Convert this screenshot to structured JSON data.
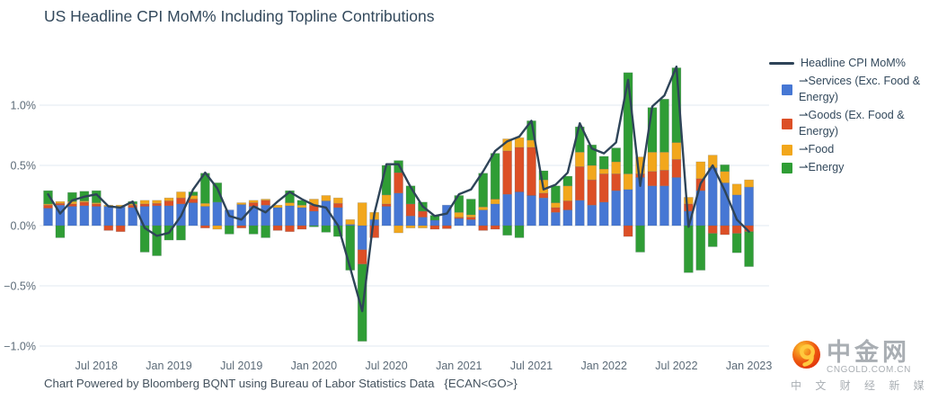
{
  "title": "US Headline CPI MoM% Including Topline Contributions",
  "footer": "Chart Powered by Bloomberg BQNT using Bureau of Labor Statistics Data   {ECAN<GO>}",
  "watermark": {
    "brand": "中金网",
    "domain": "CNGOLD.COM.CN",
    "tagline": "中 文 财 经 新 媒 体"
  },
  "legend": {
    "items": [
      {
        "label": "Headline CPI MoM%",
        "swatch": "line"
      },
      {
        "label": "⇀Services (Exc. Food & Energy)",
        "swatch": "square"
      },
      {
        "label": "⇀Goods (Ex. Food & Energy)",
        "swatch": "square"
      },
      {
        "label": "⇀Food",
        "swatch": "square"
      },
      {
        "label": "⇀Energy",
        "swatch": "square"
      }
    ]
  },
  "chart_data": {
    "type": "bar",
    "subtype": "stacked-bars-with-line",
    "title": "US Headline CPI MoM% Including Topline Contributions",
    "xlabel": "",
    "ylabel": "",
    "ylim": [
      -1.05,
      1.45
    ],
    "grid": true,
    "grid_color": "#e6edf4",
    "legend_position": "top-right",
    "y_ticks": [
      {
        "v": 1.0,
        "label": "1.0%"
      },
      {
        "v": 0.5,
        "label": "0.5%"
      },
      {
        "v": 0.0,
        "label": "0.0%"
      },
      {
        "v": -0.5,
        "label": "−0.5%"
      },
      {
        "v": -1.0,
        "label": "−1.0%"
      }
    ],
    "x_ticks": [
      "Jul 2018",
      "Jan 2019",
      "Jul 2019",
      "Jan 2020",
      "Jul 2020",
      "Jan 2021",
      "Jul 2021",
      "Jan 2022",
      "Jul 2022",
      "Jan 2023"
    ],
    "categories": [
      "Mar 2018",
      "Apr 2018",
      "May 2018",
      "Jun 2018",
      "Jul 2018",
      "Aug 2018",
      "Sep 2018",
      "Oct 2018",
      "Nov 2018",
      "Dec 2018",
      "Jan 2019",
      "Feb 2019",
      "Mar 2019",
      "Apr 2019",
      "May 2019",
      "Jun 2019",
      "Jul 2019",
      "Aug 2019",
      "Sep 2019",
      "Oct 2019",
      "Nov 2019",
      "Dec 2019",
      "Jan 2020",
      "Feb 2020",
      "Mar 2020",
      "Apr 2020",
      "May 2020",
      "Jun 2020",
      "Jul 2020",
      "Aug 2020",
      "Sep 2020",
      "Oct 2020",
      "Nov 2020",
      "Dec 2020",
      "Jan 2021",
      "Feb 2021",
      "Mar 2021",
      "Apr 2021",
      "May 2021",
      "Jun 2021",
      "Jul 2021",
      "Aug 2021",
      "Sep 2021",
      "Oct 2021",
      "Nov 2021",
      "Dec 2021",
      "Jan 2022",
      "Feb 2022",
      "Mar 2022",
      "Apr 2022",
      "May 2022",
      "Jun 2022",
      "Jul 2022",
      "Aug 2022",
      "Sep 2022",
      "Oct 2022",
      "Nov 2022",
      "Dec 2022",
      "Jan 2023"
    ],
    "series": [
      {
        "name": "Services (Exc. Food & Energy)",
        "color": "#4677d4",
        "values": [
          0.145,
          0.17,
          0.16,
          0.165,
          0.16,
          0.16,
          0.155,
          0.15,
          0.16,
          0.165,
          0.165,
          0.18,
          0.19,
          0.16,
          0.195,
          0.13,
          0.175,
          0.16,
          0.17,
          0.15,
          0.165,
          0.15,
          0.12,
          0.205,
          0.15,
          0.01,
          -0.2,
          0.05,
          0.16,
          0.27,
          0.08,
          0.07,
          0.045,
          0.17,
          0.06,
          0.05,
          0.13,
          0.18,
          0.26,
          0.28,
          0.25,
          0.23,
          0.11,
          0.13,
          0.21,
          0.17,
          0.195,
          0.29,
          0.3,
          0.4,
          0.33,
          0.33,
          0.4,
          0.12,
          0.29,
          0.48,
          0.355,
          0.255,
          0.32
        ]
      },
      {
        "name": "Goods (Ex. Food & Energy)",
        "color": "#dc4f26",
        "values": [
          0.025,
          0.015,
          0.02,
          0.03,
          0.02,
          -0.04,
          -0.05,
          0.02,
          0.02,
          0.02,
          0.04,
          0.05,
          0.03,
          -0.02,
          0.0,
          0.0,
          -0.02,
          0.03,
          0.04,
          -0.04,
          -0.05,
          -0.03,
          0.05,
          0.0,
          0.035,
          0.0,
          -0.12,
          -0.1,
          0.02,
          0.17,
          0.1,
          0.05,
          -0.03,
          -0.025,
          0.01,
          0.02,
          -0.04,
          -0.03,
          0.36,
          0.37,
          0.4,
          0.04,
          0.04,
          0.075,
          0.28,
          0.21,
          0.235,
          0.14,
          -0.09,
          0.03,
          0.12,
          0.13,
          0.15,
          0.06,
          0.1,
          -0.065,
          -0.075,
          -0.065,
          -0.05
        ]
      },
      {
        "name": "Food",
        "color": "#f2a71c",
        "values": [
          0.01,
          0.015,
          0.02,
          0.01,
          0.01,
          0.01,
          0.015,
          0.01,
          0.03,
          0.025,
          0.025,
          0.05,
          0.03,
          0.025,
          -0.03,
          0.0,
          0.015,
          0.02,
          0.01,
          0.02,
          0.025,
          0.02,
          0.05,
          0.045,
          0.045,
          0.04,
          0.19,
          0.06,
          0.075,
          -0.06,
          -0.02,
          -0.02,
          0.0,
          0.0,
          0.04,
          0.02,
          0.025,
          0.04,
          0.1,
          0.08,
          0.06,
          0.11,
          0.04,
          0.125,
          0.12,
          0.12,
          0.04,
          0.1,
          0.13,
          0.14,
          0.16,
          0.15,
          0.14,
          0.055,
          0.14,
          0.105,
          0.095,
          0.09,
          0.06
        ]
      },
      {
        "name": "Energy",
        "color": "#2f9d35",
        "values": [
          0.11,
          -0.1,
          0.075,
          0.08,
          0.1,
          0.0,
          0.0,
          0.02,
          -0.22,
          -0.25,
          -0.12,
          -0.12,
          0.03,
          0.25,
          0.16,
          -0.07,
          0.0,
          -0.07,
          -0.1,
          0.0,
          0.1,
          0.04,
          -0.01,
          -0.055,
          -0.09,
          -0.37,
          -0.64,
          0.0,
          0.245,
          0.1,
          0.15,
          0.075,
          0.04,
          0.0,
          0.14,
          0.13,
          0.28,
          0.38,
          -0.08,
          -0.1,
          0.16,
          0.075,
          0.14,
          0.08,
          0.21,
          0.17,
          0.105,
          0.115,
          0.84,
          -0.22,
          0.37,
          0.44,
          0.62,
          -0.39,
          -0.37,
          -0.11,
          0.055,
          -0.16,
          -0.29
        ]
      }
    ],
    "line": {
      "name": "Headline CPI MoM%",
      "color": "#2e4458",
      "values": [
        0.26,
        0.1,
        0.21,
        0.24,
        0.26,
        0.16,
        0.15,
        0.2,
        -0.02,
        -0.085,
        -0.06,
        0.08,
        0.3,
        0.44,
        0.31,
        0.08,
        0.05,
        0.16,
        0.11,
        0.2,
        0.28,
        0.22,
        0.17,
        0.15,
        0.0,
        -0.35,
        -0.71,
        0.1,
        0.51,
        0.51,
        0.32,
        0.16,
        0.08,
        0.1,
        0.26,
        0.3,
        0.45,
        0.62,
        0.7,
        0.74,
        0.87,
        0.3,
        0.34,
        0.44,
        0.85,
        0.64,
        0.6,
        0.69,
        1.21,
        0.33,
        0.99,
        1.08,
        1.32,
        -0.01,
        0.35,
        0.5,
        0.29,
        0.05,
        -0.05
      ]
    }
  }
}
